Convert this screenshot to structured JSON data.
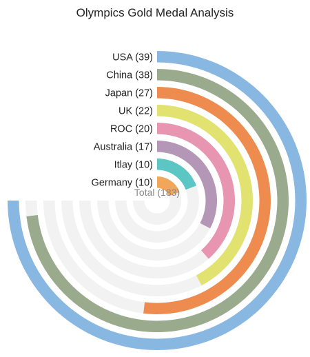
{
  "chart_data": {
    "type": "radial-bar",
    "title": "Olympics Gold Medal Analysis",
    "total_label": "Total (183)",
    "max": 39,
    "categories": [
      "USA (39)",
      "China (38)",
      "Japan (27)",
      "UK (22)",
      "ROC (20)",
      "Australia (17)",
      "Itlay (10)",
      "Germany (10)"
    ],
    "values": [
      39,
      38,
      27,
      22,
      20,
      17,
      10,
      10
    ],
    "colors": [
      "#88b8e2",
      "#9aaa8c",
      "#ee8c50",
      "#e1e26f",
      "#e795b0",
      "#b496b7",
      "#5cc6c4",
      "#f2a65a"
    ],
    "track_color": "#f2f2f2",
    "sweep_degrees": 270,
    "start": "top"
  }
}
